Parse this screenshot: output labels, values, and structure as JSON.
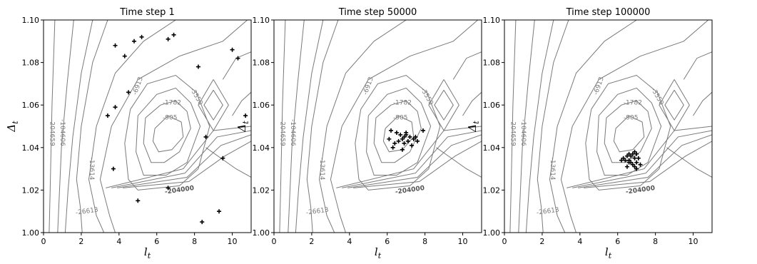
{
  "chart_data": [
    {
      "type": "scatter",
      "title": "Time step 1",
      "xlabel": "l_t",
      "ylabel": "Δ_t",
      "xlim": [
        0,
        11
      ],
      "ylim": [
        1.0,
        1.1
      ],
      "xticks": [
        "0",
        "2",
        "4",
        "6",
        "8",
        "10"
      ],
      "yticks": [
        "1.00",
        "1.02",
        "1.04",
        "1.06",
        "1.08",
        "1.10"
      ],
      "grid": false,
      "contour_levels": [
        "-104606",
        "-204659",
        "-13614",
        "-26613",
        "-6913",
        "-3550",
        "-1782",
        "-905",
        "-204000"
      ],
      "points": [
        [
          3.8,
          1.088
        ],
        [
          4.3,
          1.083
        ],
        [
          4.8,
          1.09
        ],
        [
          5.2,
          1.092
        ],
        [
          6.6,
          1.091
        ],
        [
          6.9,
          1.093
        ],
        [
          10.0,
          1.086
        ],
        [
          10.3,
          1.082
        ],
        [
          8.2,
          1.078
        ],
        [
          4.5,
          1.066
        ],
        [
          3.8,
          1.059
        ],
        [
          3.4,
          1.055
        ],
        [
          10.7,
          1.055
        ],
        [
          8.6,
          1.045
        ],
        [
          9.5,
          1.035
        ],
        [
          3.7,
          1.03
        ],
        [
          6.6,
          1.021
        ],
        [
          5.0,
          1.015
        ],
        [
          9.3,
          1.01
        ],
        [
          8.4,
          1.005
        ]
      ]
    },
    {
      "type": "scatter",
      "title": "Time step 50000",
      "xlabel": "l_t",
      "ylabel": "Δ_t",
      "xlim": [
        0,
        11
      ],
      "ylim": [
        1.0,
        1.1
      ],
      "xticks": [
        "0",
        "2",
        "4",
        "6",
        "8",
        "10"
      ],
      "yticks": [
        "1.00",
        "1.02",
        "1.04",
        "1.06",
        "1.08",
        "1.10"
      ],
      "grid": false,
      "contour_levels": [
        "-104606",
        "-204659",
        "-13614",
        "-26613",
        "-6913",
        "-3550",
        "-1782",
        "-905",
        "-204000"
      ],
      "points": [
        [
          6.2,
          1.048
        ],
        [
          6.5,
          1.047
        ],
        [
          6.7,
          1.046
        ],
        [
          6.9,
          1.045
        ],
        [
          7.0,
          1.046
        ],
        [
          7.2,
          1.045
        ],
        [
          7.4,
          1.044
        ],
        [
          6.8,
          1.044
        ],
        [
          6.6,
          1.043
        ],
        [
          7.1,
          1.043
        ],
        [
          7.5,
          1.045
        ],
        [
          7.9,
          1.048
        ],
        [
          6.4,
          1.042
        ],
        [
          6.9,
          1.042
        ],
        [
          7.3,
          1.041
        ],
        [
          6.1,
          1.044
        ],
        [
          7.6,
          1.043
        ],
        [
          6.3,
          1.04
        ],
        [
          6.8,
          1.039
        ],
        [
          7.0,
          1.047
        ]
      ]
    },
    {
      "type": "scatter",
      "title": "Time step 100000",
      "xlabel": "l_t",
      "ylabel": "Δ_t",
      "xlim": [
        0,
        11
      ],
      "ylim": [
        1.0,
        1.1
      ],
      "xticks": [
        "0",
        "2",
        "4",
        "6",
        "8",
        "10"
      ],
      "yticks": [
        "1.00",
        "1.02",
        "1.04",
        "1.06",
        "1.08",
        "1.10"
      ],
      "grid": false,
      "contour_levels": [
        "-104606",
        "-204659",
        "-13614",
        "-26613",
        "-6913",
        "-3550",
        "-1782",
        "-905",
        "-204000"
      ],
      "points": [
        [
          6.3,
          1.035
        ],
        [
          6.5,
          1.036
        ],
        [
          6.6,
          1.034
        ],
        [
          6.7,
          1.036
        ],
        [
          6.8,
          1.037
        ],
        [
          6.9,
          1.035
        ],
        [
          7.0,
          1.037
        ],
        [
          6.6,
          1.033
        ],
        [
          6.8,
          1.032
        ],
        [
          7.0,
          1.033
        ],
        [
          7.2,
          1.032
        ],
        [
          6.5,
          1.031
        ],
        [
          7.0,
          1.03
        ],
        [
          6.4,
          1.034
        ],
        [
          6.7,
          1.033
        ],
        [
          6.9,
          1.031
        ],
        [
          6.2,
          1.034
        ],
        [
          7.1,
          1.035
        ],
        [
          6.6,
          1.037
        ],
        [
          6.9,
          1.038
        ]
      ]
    }
  ]
}
